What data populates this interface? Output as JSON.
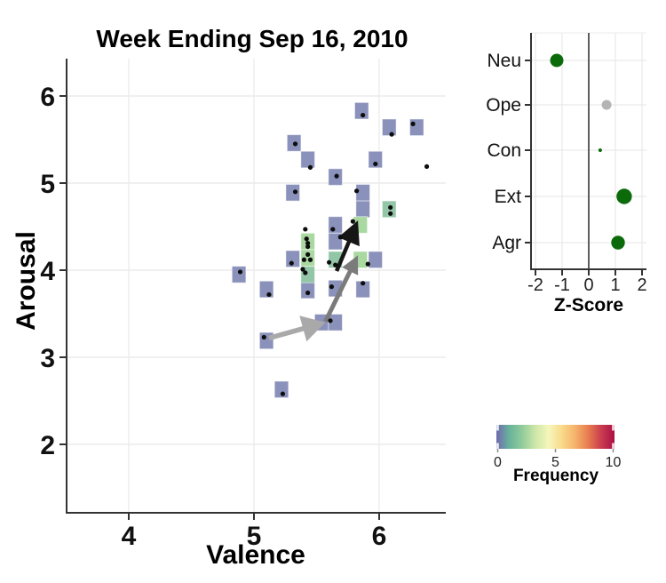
{
  "figure": {
    "background": "#ffffff",
    "text_color": "#111111",
    "axis_color": "#333333",
    "grid_color": "#ececec"
  },
  "chart_data": [
    {
      "type": "heatmap",
      "title": "Week Ending Sep 16, 2010",
      "xlabel": "Valence",
      "ylabel": "Arousal",
      "x_ticks": [
        4,
        5,
        6
      ],
      "y_ticks": [
        2,
        3,
        4,
        5,
        6
      ],
      "xlim": [
        3.5,
        6.52
      ],
      "ylim": [
        1.2,
        6.42
      ],
      "bin_width_units": 0.11,
      "bin_height_units": 0.19,
      "freq_colors": {
        "1": "#8a91bb",
        "2": "#92c6a6",
        "3": "#a9d8a1"
      },
      "bins": [
        [
          5.86,
          5.83,
          1
        ],
        [
          6.08,
          5.64,
          1
        ],
        [
          6.3,
          5.64,
          1
        ],
        [
          5.32,
          5.46,
          1
        ],
        [
          5.43,
          5.27,
          1
        ],
        [
          5.65,
          5.07,
          1
        ],
        [
          5.97,
          5.27,
          1
        ],
        [
          5.31,
          4.89,
          1
        ],
        [
          5.87,
          4.89,
          1
        ],
        [
          5.87,
          4.7,
          1
        ],
        [
          4.88,
          3.95,
          1
        ],
        [
          5.1,
          3.78,
          1
        ],
        [
          5.31,
          4.13,
          1
        ],
        [
          5.43,
          3.77,
          1
        ],
        [
          5.65,
          4.52,
          1
        ],
        [
          5.65,
          4.33,
          1
        ],
        [
          5.65,
          3.79,
          1
        ],
        [
          5.97,
          4.12,
          1
        ],
        [
          5.87,
          3.78,
          1
        ],
        [
          5.54,
          3.4,
          1
        ],
        [
          5.65,
          3.4,
          1
        ],
        [
          5.1,
          3.19,
          1
        ],
        [
          5.22,
          2.63,
          1
        ],
        [
          5.43,
          3.95,
          2
        ],
        [
          6.08,
          4.7,
          2
        ],
        [
          5.65,
          4.12,
          2
        ],
        [
          5.43,
          4.33,
          3
        ],
        [
          5.43,
          4.14,
          3
        ],
        [
          5.85,
          4.52,
          3
        ],
        [
          5.85,
          4.12,
          3
        ]
      ],
      "points": [
        [
          5.87,
          5.78
        ],
        [
          6.1,
          5.56
        ],
        [
          6.27,
          5.68
        ],
        [
          5.33,
          5.45
        ],
        [
          5.45,
          5.18
        ],
        [
          5.66,
          5.08
        ],
        [
          5.97,
          5.22
        ],
        [
          6.38,
          5.19
        ],
        [
          5.33,
          4.9
        ],
        [
          5.82,
          4.91
        ],
        [
          6.09,
          4.72
        ],
        [
          6.09,
          4.65
        ],
        [
          5.79,
          4.56
        ],
        [
          5.41,
          4.47
        ],
        [
          5.63,
          4.47
        ],
        [
          5.69,
          4.38
        ],
        [
          5.42,
          4.36
        ],
        [
          5.43,
          4.31
        ],
        [
          5.43,
          4.27
        ],
        [
          5.43,
          4.18
        ],
        [
          5.4,
          4.12
        ],
        [
          5.45,
          4.12
        ],
        [
          5.39,
          4.01
        ],
        [
          5.41,
          3.97
        ],
        [
          5.6,
          4.09
        ],
        [
          5.65,
          4.06
        ],
        [
          5.91,
          4.07
        ],
        [
          4.89,
          3.98
        ],
        [
          5.3,
          4.08
        ],
        [
          5.12,
          3.72
        ],
        [
          5.43,
          3.74
        ],
        [
          5.62,
          3.81
        ],
        [
          5.87,
          3.85
        ],
        [
          5.61,
          3.42
        ],
        [
          5.08,
          3.23
        ],
        [
          5.23,
          2.58
        ]
      ],
      "point_color": "#0d0d0d",
      "arrows": [
        {
          "x1": 5.12,
          "y1": 3.22,
          "x2": 5.57,
          "y2": 3.4,
          "color": "#a9a9a9",
          "lw": 5.5,
          "head_len": 26,
          "head_hw": 15
        },
        {
          "x1": 5.57,
          "y1": 3.41,
          "x2": 5.83,
          "y2": 4.17,
          "color": "#7b7b7b",
          "lw": 5,
          "head_len": 20,
          "head_hw": 10
        },
        {
          "x1": 5.66,
          "y1": 3.99,
          "x2": 5.83,
          "y2": 4.57,
          "color": "#161616",
          "lw": 4.5,
          "head_len": 26,
          "head_hw": 13
        }
      ]
    },
    {
      "type": "scatter",
      "xlabel": "Z-Score",
      "categories": [
        "Neu",
        "Ope",
        "Con",
        "Ext",
        "Agr"
      ],
      "x_ticks": [
        -2,
        -1,
        0,
        1,
        2
      ],
      "xlim": [
        -2.2,
        2.2
      ],
      "zero_line": 0,
      "points": [
        {
          "label": "Neu",
          "z": -1.2,
          "r": 7.5,
          "color": "#0b6b0b"
        },
        {
          "label": "Ope",
          "z": 0.67,
          "r": 5.5,
          "color": "#b4b4b4"
        },
        {
          "label": "Con",
          "z": 0.43,
          "r": 2.0,
          "color": "#0b6b0b"
        },
        {
          "label": "Ext",
          "z": 1.33,
          "r": 8.7,
          "color": "#0b6b0b"
        },
        {
          "label": "Agr",
          "z": 1.1,
          "r": 7.7,
          "color": "#0b6b0b"
        }
      ]
    },
    {
      "type": "colorbar",
      "label": "Frequency",
      "ticks": [
        0,
        5,
        10
      ],
      "range": [
        0,
        10
      ],
      "gradient": [
        "#6f6aae",
        "#68b49b",
        "#93cc9b",
        "#cfe8a9",
        "#f6f6bb",
        "#f9d98a",
        "#f5b36b",
        "#e77c4f",
        "#c93c4f",
        "#aa1045"
      ]
    }
  ]
}
